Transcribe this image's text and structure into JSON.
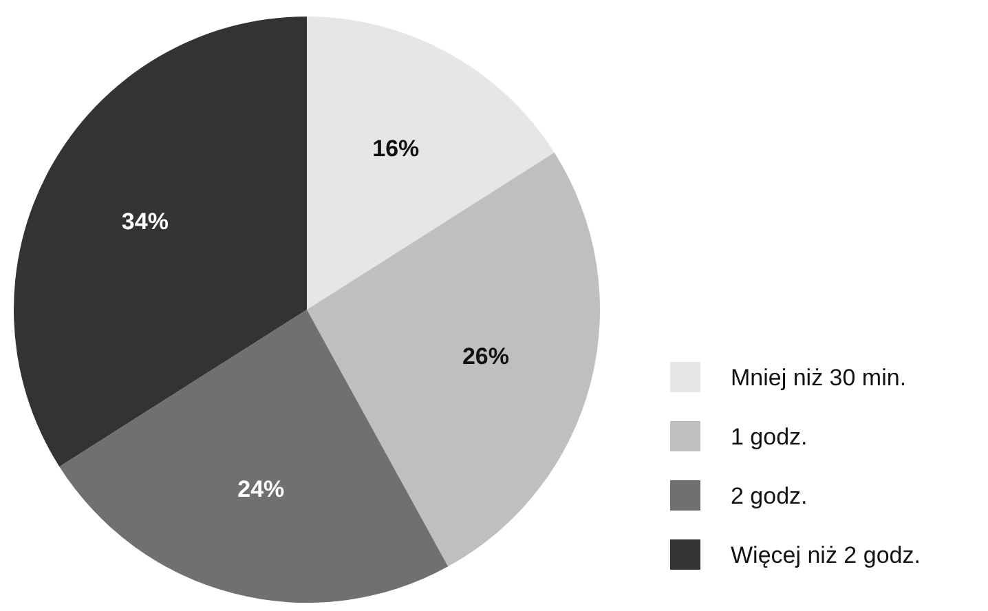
{
  "chart_data": {
    "type": "pie",
    "categories": [
      "Mniej niż 30 min.",
      "1 godz.",
      "2 godz.",
      "Więcej niż 2 godz."
    ],
    "values": [
      16,
      26,
      24,
      34
    ],
    "colors": [
      "#e6e6e6",
      "#bfbfbf",
      "#707070",
      "#333333"
    ],
    "value_labels": [
      "16%",
      "26%",
      "24%",
      "34%"
    ],
    "legend": "bottom right"
  }
}
